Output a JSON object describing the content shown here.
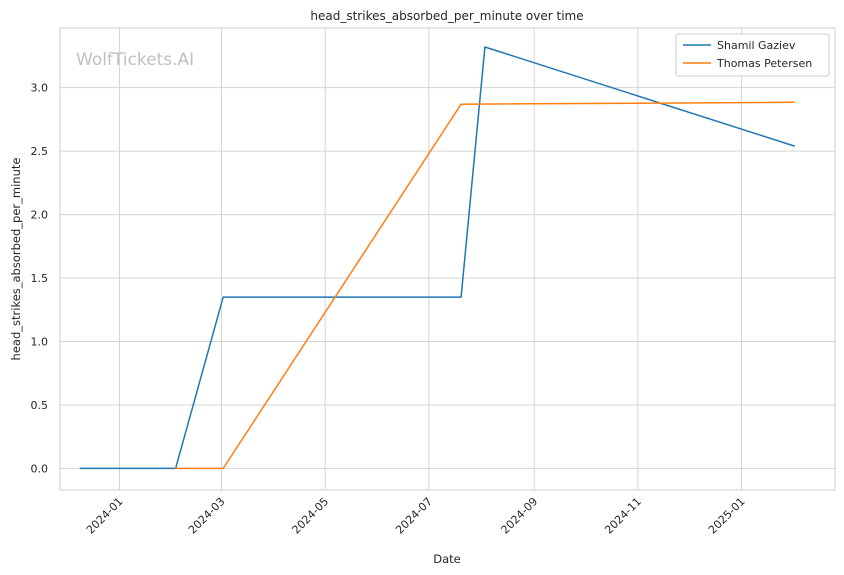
{
  "chart_data": {
    "type": "line",
    "title": "head_strikes_absorbed_per_minute over time",
    "xlabel": "Date",
    "ylabel": "head_strikes_absorbed_per_minute",
    "watermark": "WolfTickets.AI",
    "x_axis_type": "date",
    "xlim": [
      "2023-11-27",
      "2025-02-25"
    ],
    "ylim": [
      -0.17,
      3.47
    ],
    "x_ticks": [
      "2024-01",
      "2024-03",
      "2024-05",
      "2024-07",
      "2024-09",
      "2024-11",
      "2025-01"
    ],
    "x_tick_dates": [
      "2024-01-01",
      "2024-03-01",
      "2024-05-01",
      "2024-07-01",
      "2024-09-01",
      "2024-11-01",
      "2025-01-01"
    ],
    "y_ticks": [
      "0.0",
      "0.5",
      "1.0",
      "1.5",
      "2.0",
      "2.5",
      "3.0"
    ],
    "y_tick_values": [
      0,
      0.5,
      1.0,
      1.5,
      2.0,
      2.5,
      3.0
    ],
    "grid": true,
    "legend_position": "top-right",
    "series": [
      {
        "name": "Shamil Gaziev",
        "color": "#1f77b4",
        "x": [
          "2023-12-09",
          "2024-02-03",
          "2024-03-02",
          "2024-07-20",
          "2024-08-03",
          "2025-02-01"
        ],
        "y": [
          0.0,
          0.0,
          1.35,
          1.35,
          3.32,
          2.54
        ]
      },
      {
        "name": "Thomas Petersen",
        "color": "#ff7f0e",
        "x": [
          "2024-02-03",
          "2024-03-02",
          "2024-07-20",
          "2025-02-01"
        ],
        "y": [
          0.0,
          0.0,
          2.87,
          2.885
        ]
      }
    ]
  }
}
